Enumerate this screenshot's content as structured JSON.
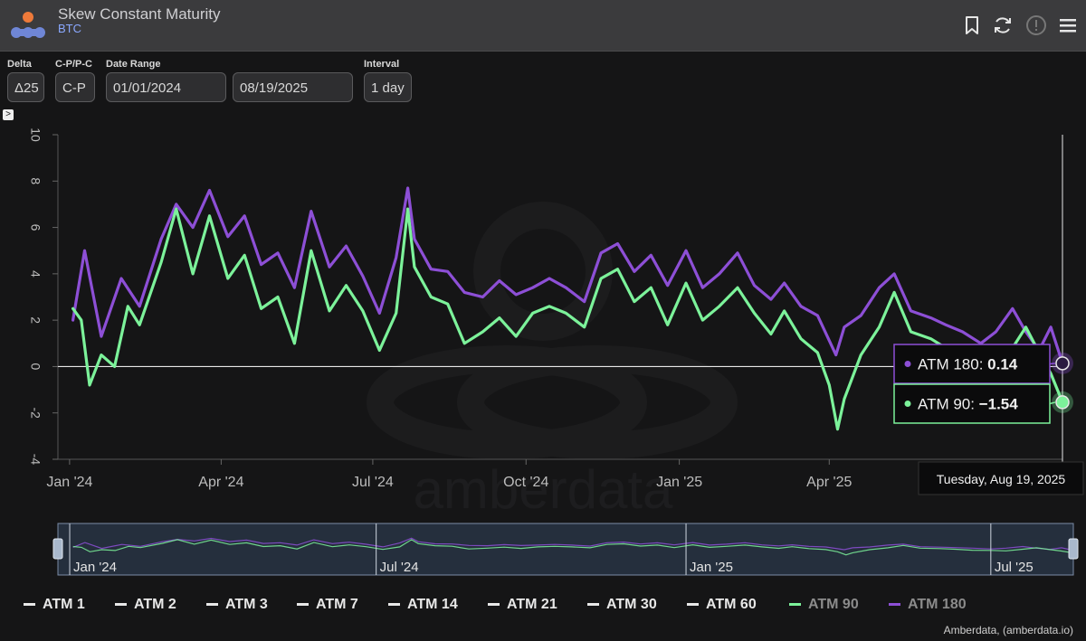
{
  "header": {
    "title": "Skew Constant Maturity",
    "subtitle": "BTC"
  },
  "controls": {
    "delta": {
      "label": "Delta",
      "value": "Δ25"
    },
    "cp": {
      "label": "C-P/P-C",
      "value": "C-P"
    },
    "date_range": {
      "label": "Date Range",
      "start": "01/01/2024",
      "end": "08/19/2025"
    },
    "interval": {
      "label": "Interval",
      "value": "1 day"
    }
  },
  "collapse_glyph": ">",
  "colors": {
    "atm90": "#7cf29a",
    "atm180": "#8d4fd6",
    "background": "#151516"
  },
  "chart_data": {
    "type": "line",
    "x_unit": "date",
    "ylim": [
      -4,
      10
    ],
    "yticks": [
      -4,
      -2,
      0,
      2,
      4,
      6,
      8,
      10
    ],
    "xticks": [
      "Jan '24",
      "Apr '24",
      "Jul '24",
      "Oct '24",
      "Jan '25",
      "Apr '25"
    ],
    "xtick_dates": [
      "2024-01-01",
      "2024-04-01",
      "2024-07-01",
      "2024-10-01",
      "2025-01-01",
      "2025-04-01"
    ],
    "xrange": [
      "2023-12-25",
      "2025-08-19"
    ],
    "grid": false,
    "zero_line": true,
    "series": [
      {
        "name": "ATM 180",
        "color": "#8d4fd6",
        "x": [
          "2024-01-03",
          "2024-01-10",
          "2024-01-20",
          "2024-02-01",
          "2024-02-12",
          "2024-02-25",
          "2024-03-05",
          "2024-03-15",
          "2024-03-25",
          "2024-04-05",
          "2024-04-15",
          "2024-04-25",
          "2024-05-05",
          "2024-05-15",
          "2024-05-25",
          "2024-06-05",
          "2024-06-15",
          "2024-06-25",
          "2024-07-05",
          "2024-07-15",
          "2024-07-22",
          "2024-07-26",
          "2024-08-05",
          "2024-08-15",
          "2024-08-25",
          "2024-09-05",
          "2024-09-15",
          "2024-09-25",
          "2024-10-05",
          "2024-10-15",
          "2024-10-25",
          "2024-11-05",
          "2024-11-15",
          "2024-11-25",
          "2024-12-05",
          "2024-12-15",
          "2024-12-25",
          "2025-01-05",
          "2025-01-15",
          "2025-01-25",
          "2025-02-05",
          "2025-02-15",
          "2025-02-25",
          "2025-03-05",
          "2025-03-15",
          "2025-03-25",
          "2025-04-05",
          "2025-04-10",
          "2025-04-20",
          "2025-05-01",
          "2025-05-10",
          "2025-05-20",
          "2025-06-01",
          "2025-06-10",
          "2025-06-20",
          "2025-07-01",
          "2025-07-10",
          "2025-07-20",
          "2025-07-28",
          "2025-08-05",
          "2025-08-12",
          "2025-08-19"
        ],
        "y": [
          2.0,
          5.0,
          1.3,
          3.8,
          2.6,
          5.5,
          7.0,
          6.0,
          7.6,
          5.6,
          6.5,
          4.4,
          4.9,
          3.4,
          6.7,
          4.3,
          5.2,
          3.9,
          2.3,
          4.7,
          7.7,
          5.5,
          4.2,
          4.1,
          3.2,
          3.0,
          3.7,
          3.1,
          3.4,
          3.8,
          3.4,
          2.8,
          4.9,
          5.3,
          4.1,
          4.8,
          3.5,
          5.0,
          3.4,
          4.0,
          4.9,
          3.5,
          2.9,
          3.6,
          2.6,
          2.2,
          0.5,
          1.7,
          2.2,
          3.4,
          4.0,
          2.4,
          2.1,
          1.8,
          1.5,
          1.0,
          1.5,
          2.5,
          1.5,
          0.7,
          1.7,
          0.14
        ]
      },
      {
        "name": "ATM 90",
        "color": "#7cf29a",
        "x": [
          "2024-01-03",
          "2024-01-08",
          "2024-01-13",
          "2024-01-20",
          "2024-01-28",
          "2024-02-05",
          "2024-02-12",
          "2024-02-25",
          "2024-03-05",
          "2024-03-15",
          "2024-03-25",
          "2024-04-05",
          "2024-04-15",
          "2024-04-25",
          "2024-05-05",
          "2024-05-15",
          "2024-05-25",
          "2024-06-05",
          "2024-06-15",
          "2024-06-25",
          "2024-07-05",
          "2024-07-15",
          "2024-07-22",
          "2024-07-26",
          "2024-08-05",
          "2024-08-15",
          "2024-08-25",
          "2024-09-05",
          "2024-09-15",
          "2024-09-25",
          "2024-10-05",
          "2024-10-15",
          "2024-10-25",
          "2024-11-05",
          "2024-11-15",
          "2024-11-25",
          "2024-12-05",
          "2024-12-15",
          "2024-12-25",
          "2025-01-05",
          "2025-01-15",
          "2025-01-25",
          "2025-02-05",
          "2025-02-15",
          "2025-02-25",
          "2025-03-05",
          "2025-03-15",
          "2025-03-25",
          "2025-04-01",
          "2025-04-06",
          "2025-04-10",
          "2025-04-20",
          "2025-05-01",
          "2025-05-10",
          "2025-05-20",
          "2025-06-01",
          "2025-06-10",
          "2025-06-20",
          "2025-07-01",
          "2025-07-10",
          "2025-07-20",
          "2025-07-28",
          "2025-08-05",
          "2025-08-12",
          "2025-08-19"
        ],
        "y": [
          2.5,
          2.0,
          -0.8,
          0.5,
          0.0,
          2.6,
          1.8,
          4.5,
          6.8,
          4.0,
          6.5,
          3.8,
          4.8,
          2.5,
          3.0,
          1.0,
          5.0,
          2.4,
          3.5,
          2.4,
          0.7,
          2.3,
          6.8,
          4.3,
          3.0,
          2.7,
          1.0,
          1.5,
          2.1,
          1.3,
          2.3,
          2.6,
          2.3,
          1.7,
          3.8,
          4.2,
          2.8,
          3.4,
          1.8,
          3.6,
          2.0,
          2.6,
          3.4,
          2.3,
          1.4,
          2.4,
          1.2,
          0.6,
          -0.8,
          -2.7,
          -1.4,
          0.5,
          1.7,
          3.2,
          1.5,
          1.2,
          0.8,
          0.2,
          0.1,
          -0.2,
          0.8,
          1.7,
          0.6,
          -0.3,
          -1.54
        ]
      }
    ],
    "tooltip": {
      "date": "Tuesday, Aug 19, 2025",
      "rows": [
        {
          "series": "ATM 180",
          "label": "ATM 180:",
          "value": "0.14"
        },
        {
          "series": "ATM 90",
          "label": "ATM 90:",
          "value": "-1.54"
        }
      ]
    },
    "navigator": {
      "xticks": [
        "Jan '24",
        "Jul '24",
        "Jan '25",
        "Jul '25"
      ],
      "xtick_dates": [
        "2024-01-01",
        "2024-07-01",
        "2025-01-01",
        "2025-07-01"
      ]
    },
    "watermark": "amberdata",
    "legend": {
      "placement": "bottom",
      "items": [
        {
          "label": "ATM 1",
          "color": "#e8e8e8",
          "muted": false
        },
        {
          "label": "ATM 2",
          "color": "#e8e8e8",
          "muted": false
        },
        {
          "label": "ATM 3",
          "color": "#e8e8e8",
          "muted": false
        },
        {
          "label": "ATM 7",
          "color": "#e8e8e8",
          "muted": false
        },
        {
          "label": "ATM 14",
          "color": "#e8e8e8",
          "muted": false
        },
        {
          "label": "ATM 21",
          "color": "#e8e8e8",
          "muted": false
        },
        {
          "label": "ATM 30",
          "color": "#e8e8e8",
          "muted": false
        },
        {
          "label": "ATM 60",
          "color": "#e8e8e8",
          "muted": false
        },
        {
          "label": "ATM 90",
          "color": "#7cf29a",
          "muted": true
        },
        {
          "label": "ATM 180",
          "color": "#8d4fd6",
          "muted": true
        }
      ]
    }
  },
  "credit": "Amberdata, (amberdata.io)"
}
